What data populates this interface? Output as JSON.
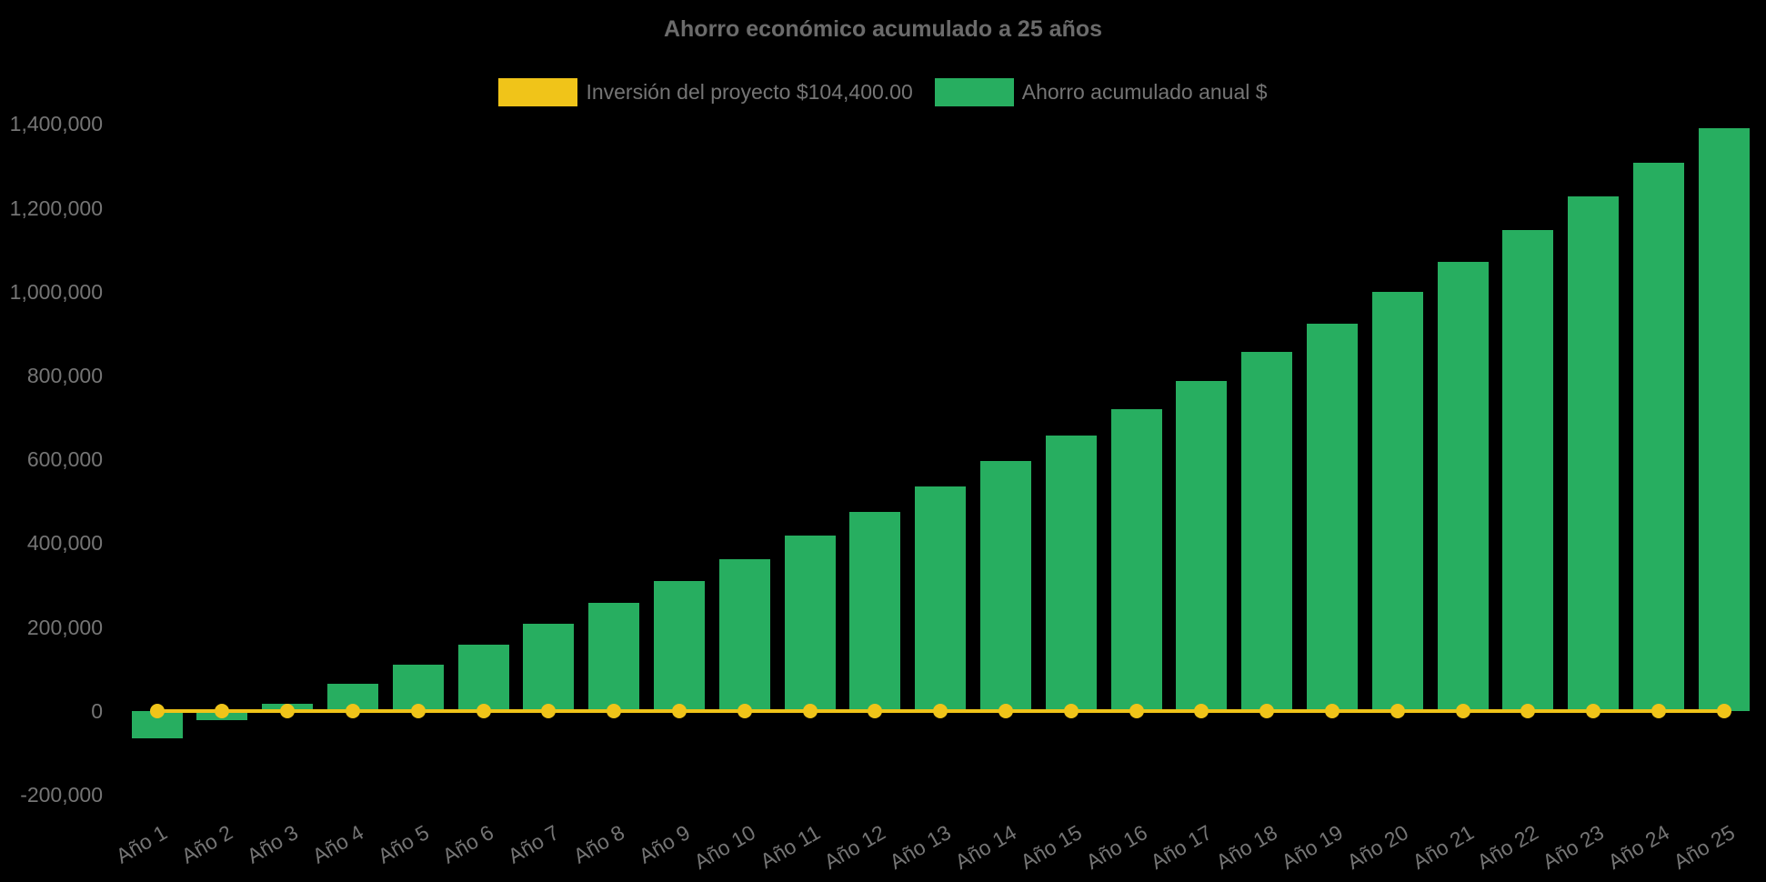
{
  "page": {
    "background": "#000000",
    "text_color": "#757575",
    "title_color": "#6b6b6b"
  },
  "chart": {
    "title": "Ahorro económico acumulado a 25 años"
  },
  "legend": {
    "investment_label": "Inversión del proyecto $104,400.00",
    "savings_label": "Ahorro acumulado anual $"
  },
  "chart_data": {
    "type": "bar",
    "title": "Ahorro económico acumulado a 25 años",
    "categories": [
      "Año 1",
      "Año 2",
      "Año 3",
      "Año 4",
      "Año 5",
      "Año 6",
      "Año 7",
      "Año 8",
      "Año 9",
      "Año 10",
      "Año 11",
      "Año 12",
      "Año 13",
      "Año 14",
      "Año 15",
      "Año 16",
      "Año 17",
      "Año 18",
      "Año 19",
      "Año 20",
      "Año 21",
      "Año 22",
      "Año 23",
      "Año 24",
      "Año 25"
    ],
    "series": [
      {
        "name": "Inversión del proyecto $104,400.00",
        "type": "line",
        "color": "#f0c419",
        "marker": "circle",
        "values": [
          0,
          0,
          0,
          0,
          0,
          0,
          0,
          0,
          0,
          0,
          0,
          0,
          0,
          0,
          0,
          0,
          0,
          0,
          0,
          0,
          0,
          0,
          0,
          0,
          0
        ]
      },
      {
        "name": "Ahorro acumulado anual $",
        "type": "bar",
        "color": "#27ae60",
        "values": [
          -66000,
          -23000,
          16000,
          64000,
          110000,
          158000,
          207000,
          257000,
          310000,
          361000,
          419000,
          475000,
          536000,
          596000,
          657000,
          720000,
          787000,
          857000,
          923000,
          999000,
          1070000,
          1147000,
          1228000,
          1307000,
          1389000
        ]
      }
    ],
    "ylim": [
      -200000,
      1400000
    ],
    "ytick_interval": 200000,
    "ytick_labels": [
      "-200,000",
      "0",
      "200,000",
      "400,000",
      "600,000",
      "800,000",
      "1,000,000",
      "1,200,000",
      "1,400,000"
    ],
    "grid": false,
    "legend_position": "top",
    "x_label_rotation_deg": -30,
    "investment_amount_usd": 104400
  }
}
